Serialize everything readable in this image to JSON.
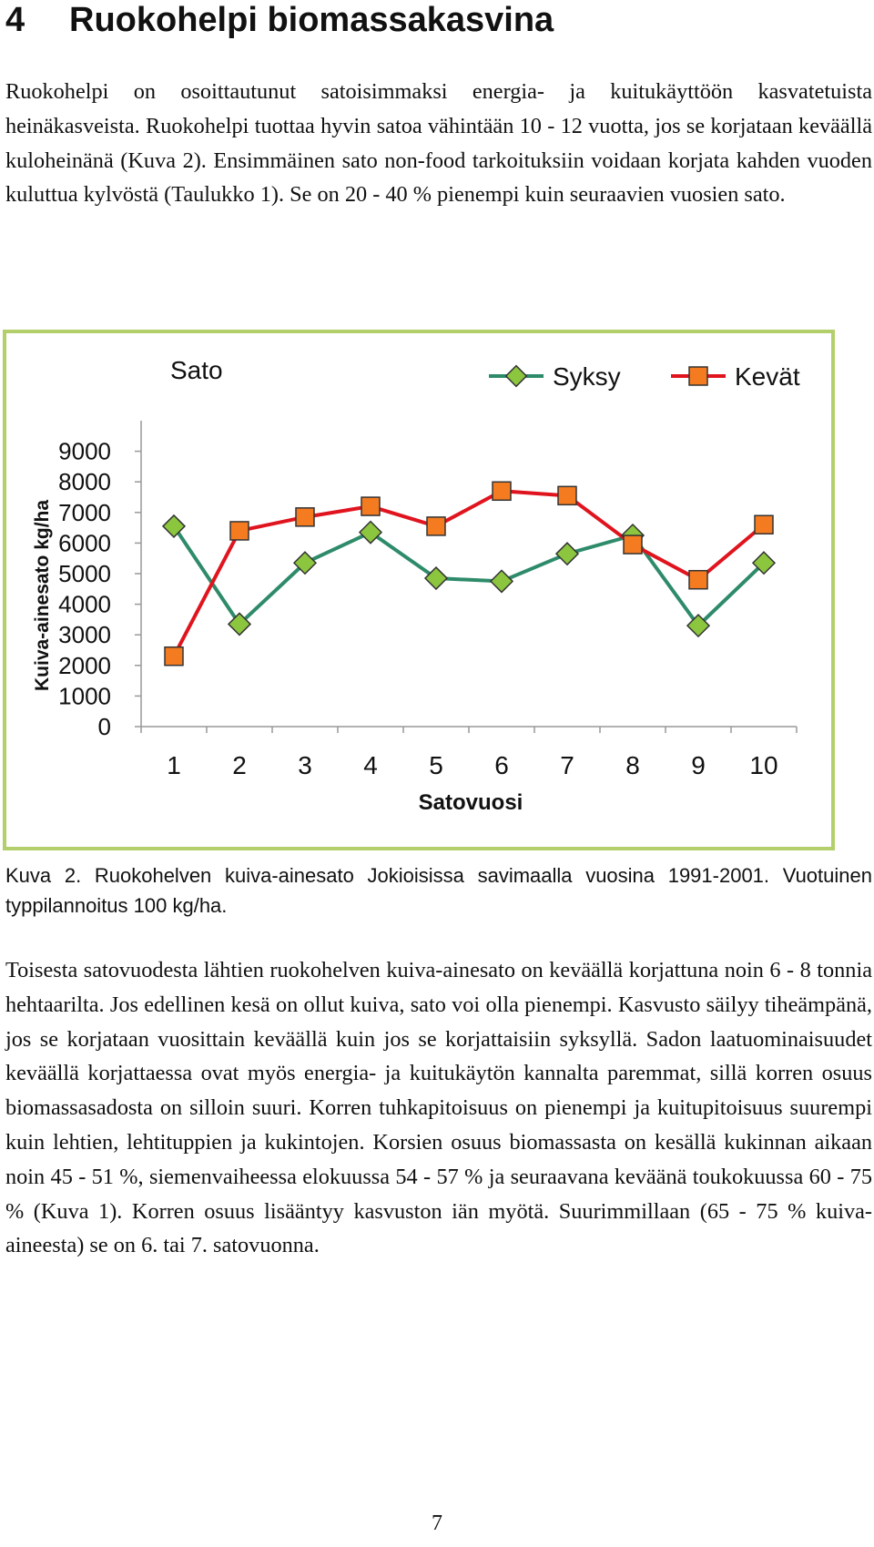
{
  "section": {
    "number": "4",
    "title": "Ruokohelpi biomassakasvina"
  },
  "paragraph1": "Ruokohelpi on osoittautunut satoisimmaksi energia- ja kuitukäyttöön kasvatetuista heinäkasveista. Ruokohelpi tuottaa hyvin satoa vähintään 10 - 12 vuotta, jos se korjataan keväällä kuloheinänä (Kuva 2). Ensimmäinen sato non-food tarkoituksiin voidaan korjata kahden vuoden kuluttua kylvöstä (Taulukko 1). Se on 20 - 40 % pienempi kuin seuraavien vuosien sato.",
  "chart_data": {
    "type": "line",
    "title": "Sato",
    "xlabel": "Satovuosi",
    "ylabel": "Kuiva-ainesato kg/ha",
    "categories": [
      "1",
      "2",
      "3",
      "4",
      "5",
      "6",
      "7",
      "8",
      "9",
      "10"
    ],
    "yticks": [
      "0",
      "1000",
      "2000",
      "3000",
      "4000",
      "5000",
      "6000",
      "7000",
      "8000",
      "9000"
    ],
    "ylim": [
      0,
      9000
    ],
    "legend_position": "top-right",
    "grid": false,
    "series": [
      {
        "name": "Syksy",
        "color": "#2e8b6a",
        "marker": "diamond",
        "marker_color": "#8cc63f",
        "values": [
          6550,
          3350,
          5350,
          6350,
          4850,
          4750,
          5650,
          6250,
          3300,
          5350
        ]
      },
      {
        "name": "Kevät",
        "color": "#e0141e",
        "marker": "square",
        "marker_color": "#f47b20",
        "values": [
          2300,
          6400,
          6850,
          7200,
          6550,
          7700,
          7550,
          5950,
          4800,
          6600
        ]
      }
    ]
  },
  "caption": "Kuva 2. Ruokohelven kuiva-ainesato Jokioisissa savimaalla vuosina 1991-2001. Vuotuinen typpilannoitus 100 kg/ha.",
  "paragraph2": "Toisesta satovuodesta lähtien ruokohelven kuiva-ainesato on keväällä korjattuna noin 6 - 8 tonnia hehtaarilta. Jos edellinen kesä on ollut kuiva, sato voi olla pienempi. Kasvusto säilyy tiheämpänä, jos se korjataan vuosittain keväällä kuin jos se korjattaisiin syksyllä. Sadon laatuominaisuudet keväällä korjattaessa ovat myös energia- ja kuitukäytön kannalta paremmat, sillä korren osuus biomassasadosta on silloin suuri. Korren tuhkapitoisuus on pienempi ja kuitupitoisuus suurempi kuin lehtien, lehtituppien ja kukintojen. Korsien osuus biomassasta on kesällä kukinnan aikaan noin 45 - 51 %, siemenvaiheessa elokuussa 54 - 57 % ja seuraavana keväänä toukokuussa 60 - 75 % (Kuva 1). Korren osuus lisääntyy kasvuston iän myötä. Suurimmillaan (65 - 75 % kuiva-aineesta) se on 6. tai 7. satovuonna.",
  "page_number": "7"
}
